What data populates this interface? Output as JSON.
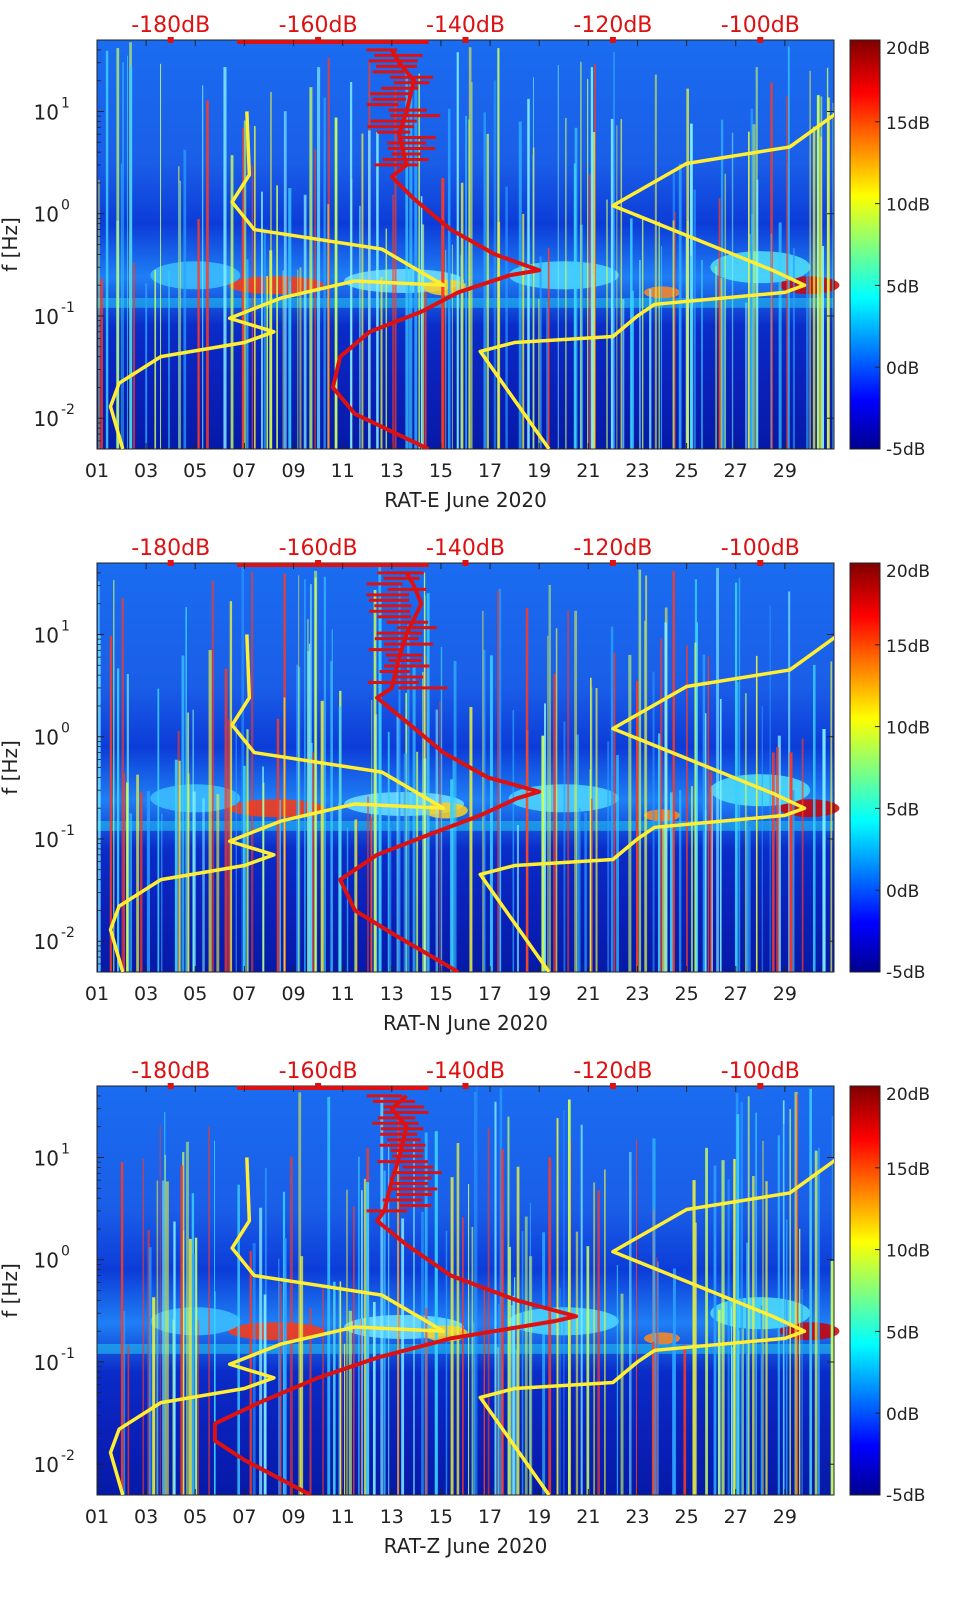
{
  "chart_data": [
    {
      "type": "heatmap",
      "title": "",
      "xlabel": "RAT-E June 2020",
      "ylabel": "f [Hz]",
      "x_ticks": [
        "01",
        "03",
        "05",
        "07",
        "09",
        "11",
        "13",
        "15",
        "17",
        "19",
        "21",
        "23",
        "25",
        "27",
        "29"
      ],
      "x_range_days": [
        1,
        31
      ],
      "y_scale": "log",
      "y_range_hz": [
        0.005,
        50
      ],
      "y_ticks": [
        {
          "label": "10",
          "exp": "-2",
          "value": 0.01
        },
        {
          "label": "10",
          "exp": "-1",
          "value": 0.1
        },
        {
          "label": "10",
          "exp": "0",
          "value": 1
        },
        {
          "label": "10",
          "exp": "1",
          "value": 10
        }
      ],
      "top_axis_labels": [
        "-180dB",
        "-160dB",
        "-140dB",
        "-120dB",
        "-100dB"
      ],
      "top_axis_range_db": [
        -190,
        -90
      ],
      "colorbar_labels": [
        "20dB",
        "15dB",
        "10dB",
        "5dB",
        "0dB",
        "-5dB"
      ],
      "colorbar_range_db": [
        -5,
        20
      ],
      "series": [
        {
          "name": "yellow noise model (left)",
          "color": "#ffee33",
          "axis": "days",
          "points": [
            [
              2.05,
              0.005
            ],
            [
              1.55,
              0.013
            ],
            [
              1.9,
              0.022
            ],
            [
              3.6,
              0.04
            ],
            [
              7.0,
              0.055
            ],
            [
              8.2,
              0.07
            ],
            [
              6.4,
              0.095
            ],
            [
              8.5,
              0.15
            ],
            [
              11.5,
              0.22
            ],
            [
              15.1,
              0.2
            ],
            [
              12.6,
              0.45
            ],
            [
              7.4,
              0.7
            ],
            [
              6.5,
              1.3
            ],
            [
              7.2,
              2.4
            ],
            [
              7.1,
              10
            ]
          ]
        },
        {
          "name": "yellow noise model (right)",
          "color": "#ffee33",
          "axis": "days",
          "points": [
            [
              19.4,
              0.005
            ],
            [
              16.6,
              0.045
            ],
            [
              18.0,
              0.055
            ],
            [
              22.0,
              0.063
            ],
            [
              23.0,
              0.1
            ],
            [
              23.7,
              0.13
            ],
            [
              29.0,
              0.17
            ],
            [
              29.8,
              0.2
            ],
            [
              28.5,
              0.28
            ],
            [
              22.0,
              1.2
            ],
            [
              25.0,
              3.1
            ],
            [
              29.2,
              4.5
            ],
            [
              31.2,
              10
            ]
          ]
        },
        {
          "name": "red PSD curve",
          "color": "#dd1111",
          "axis": "db",
          "points": [
            [
              -145,
              0.005
            ],
            [
              -155,
              0.011
            ],
            [
              -158,
              0.02
            ],
            [
              -157,
              0.04
            ],
            [
              -153,
              0.07
            ],
            [
              -146,
              0.11
            ],
            [
              -141,
              0.17
            ],
            [
              -134,
              0.25
            ],
            [
              -130,
              0.28
            ],
            [
              -136,
              0.4
            ],
            [
              -142,
              0.7
            ],
            [
              -147,
              1.4
            ],
            [
              -150,
              2.3
            ],
            [
              -148,
              3
            ],
            [
              -149,
              6
            ],
            [
              -148,
              10
            ],
            [
              -147,
              20
            ],
            [
              -149,
              30
            ],
            [
              -150,
              40
            ]
          ]
        }
      ]
    },
    {
      "type": "heatmap",
      "title": "",
      "xlabel": "RAT-N June 2020",
      "ylabel": "f [Hz]",
      "x_ticks": [
        "01",
        "03",
        "05",
        "07",
        "09",
        "11",
        "13",
        "15",
        "17",
        "19",
        "21",
        "23",
        "25",
        "27",
        "29"
      ],
      "x_range_days": [
        1,
        31
      ],
      "y_scale": "log",
      "y_range_hz": [
        0.005,
        50
      ],
      "y_ticks": [
        {
          "label": "10",
          "exp": "-2",
          "value": 0.01
        },
        {
          "label": "10",
          "exp": "-1",
          "value": 0.1
        },
        {
          "label": "10",
          "exp": "0",
          "value": 1
        },
        {
          "label": "10",
          "exp": "1",
          "value": 10
        }
      ],
      "top_axis_labels": [
        "-180dB",
        "-160dB",
        "-140dB",
        "-120dB",
        "-100dB"
      ],
      "top_axis_range_db": [
        -190,
        -90
      ],
      "colorbar_labels": [
        "20dB",
        "15dB",
        "10dB",
        "5dB",
        "0dB",
        "-5dB"
      ],
      "colorbar_range_db": [
        -5,
        20
      ],
      "series": [
        {
          "name": "yellow noise model (left)",
          "color": "#ffee33",
          "axis": "days",
          "points": [
            [
              2.05,
              0.005
            ],
            [
              1.55,
              0.013
            ],
            [
              1.9,
              0.022
            ],
            [
              3.6,
              0.04
            ],
            [
              7.0,
              0.055
            ],
            [
              8.2,
              0.07
            ],
            [
              6.4,
              0.095
            ],
            [
              8.5,
              0.15
            ],
            [
              11.5,
              0.22
            ],
            [
              15.1,
              0.2
            ],
            [
              12.6,
              0.45
            ],
            [
              7.4,
              0.7
            ],
            [
              6.5,
              1.3
            ],
            [
              7.2,
              2.4
            ],
            [
              7.1,
              10
            ]
          ]
        },
        {
          "name": "yellow noise model (right)",
          "color": "#ffee33",
          "axis": "days",
          "points": [
            [
              19.4,
              0.005
            ],
            [
              16.6,
              0.045
            ],
            [
              18.0,
              0.055
            ],
            [
              22.0,
              0.063
            ],
            [
              23.0,
              0.1
            ],
            [
              23.7,
              0.13
            ],
            [
              29.0,
              0.17
            ],
            [
              29.8,
              0.2
            ],
            [
              28.5,
              0.28
            ],
            [
              22.0,
              1.2
            ],
            [
              25.0,
              3.1
            ],
            [
              29.2,
              4.5
            ],
            [
              31.2,
              10
            ]
          ]
        },
        {
          "name": "red PSD curve",
          "color": "#dd1111",
          "axis": "db",
          "points": [
            [
              -141,
              0.005
            ],
            [
              -150,
              0.012
            ],
            [
              -155,
              0.02
            ],
            [
              -157,
              0.04
            ],
            [
              -152,
              0.07
            ],
            [
              -145,
              0.11
            ],
            [
              -138,
              0.17
            ],
            [
              -133,
              0.25
            ],
            [
              -130,
              0.29
            ],
            [
              -137,
              0.4
            ],
            [
              -143,
              0.7
            ],
            [
              -148,
              1.4
            ],
            [
              -152,
              2.4
            ],
            [
              -150,
              3
            ],
            [
              -149,
              6
            ],
            [
              -148,
              10
            ],
            [
              -146,
              20
            ],
            [
              -147,
              30
            ],
            [
              -148,
              40
            ]
          ]
        }
      ]
    },
    {
      "type": "heatmap",
      "title": "",
      "xlabel": "RAT-Z June 2020",
      "ylabel": "f [Hz]",
      "x_ticks": [
        "01",
        "03",
        "05",
        "07",
        "09",
        "11",
        "13",
        "15",
        "17",
        "19",
        "21",
        "23",
        "25",
        "27",
        "29"
      ],
      "x_range_days": [
        1,
        31
      ],
      "y_scale": "log",
      "y_range_hz": [
        0.005,
        50
      ],
      "y_ticks": [
        {
          "label": "10",
          "exp": "-2",
          "value": 0.01
        },
        {
          "label": "10",
          "exp": "-1",
          "value": 0.1
        },
        {
          "label": "10",
          "exp": "0",
          "value": 1
        },
        {
          "label": "10",
          "exp": "1",
          "value": 10
        }
      ],
      "top_axis_labels": [
        "-180dB",
        "-160dB",
        "-140dB",
        "-120dB",
        "-100dB"
      ],
      "top_axis_range_db": [
        -190,
        -90
      ],
      "colorbar_labels": [
        "20dB",
        "15dB",
        "10dB",
        "5dB",
        "0dB",
        "-5dB"
      ],
      "colorbar_range_db": [
        -5,
        20
      ],
      "series": [
        {
          "name": "yellow noise model (left)",
          "color": "#ffee33",
          "axis": "days",
          "points": [
            [
              2.05,
              0.005
            ],
            [
              1.55,
              0.013
            ],
            [
              1.9,
              0.022
            ],
            [
              3.6,
              0.04
            ],
            [
              7.0,
              0.055
            ],
            [
              8.2,
              0.07
            ],
            [
              6.4,
              0.095
            ],
            [
              8.5,
              0.15
            ],
            [
              11.5,
              0.22
            ],
            [
              15.1,
              0.2
            ],
            [
              12.6,
              0.45
            ],
            [
              7.4,
              0.7
            ],
            [
              6.5,
              1.3
            ],
            [
              7.2,
              2.4
            ],
            [
              7.1,
              10
            ]
          ]
        },
        {
          "name": "yellow noise model (right)",
          "color": "#ffee33",
          "axis": "days",
          "points": [
            [
              19.4,
              0.005
            ],
            [
              16.6,
              0.045
            ],
            [
              18.0,
              0.055
            ],
            [
              22.0,
              0.063
            ],
            [
              23.0,
              0.1
            ],
            [
              23.7,
              0.13
            ],
            [
              29.0,
              0.17
            ],
            [
              29.8,
              0.2
            ],
            [
              28.5,
              0.28
            ],
            [
              22.0,
              1.2
            ],
            [
              25.0,
              3.1
            ],
            [
              29.2,
              4.5
            ],
            [
              31.2,
              10
            ]
          ]
        },
        {
          "name": "red PSD curve",
          "color": "#dd1111",
          "axis": "db",
          "points": [
            [
              -161,
              0.005
            ],
            [
              -170,
              0.011
            ],
            [
              -174,
              0.017
            ],
            [
              -174,
              0.025
            ],
            [
              -168,
              0.04
            ],
            [
              -160,
              0.07
            ],
            [
              -152,
              0.11
            ],
            [
              -142,
              0.17
            ],
            [
              -128,
              0.25
            ],
            [
              -125,
              0.28
            ],
            [
              -133,
              0.4
            ],
            [
              -142,
              0.7
            ],
            [
              -148,
              1.4
            ],
            [
              -152,
              2.4
            ],
            [
              -151,
              3
            ],
            [
              -150,
              6
            ],
            [
              -149,
              10
            ],
            [
              -148,
              20
            ],
            [
              -150,
              30
            ],
            [
              -148,
              40
            ]
          ]
        }
      ]
    }
  ]
}
